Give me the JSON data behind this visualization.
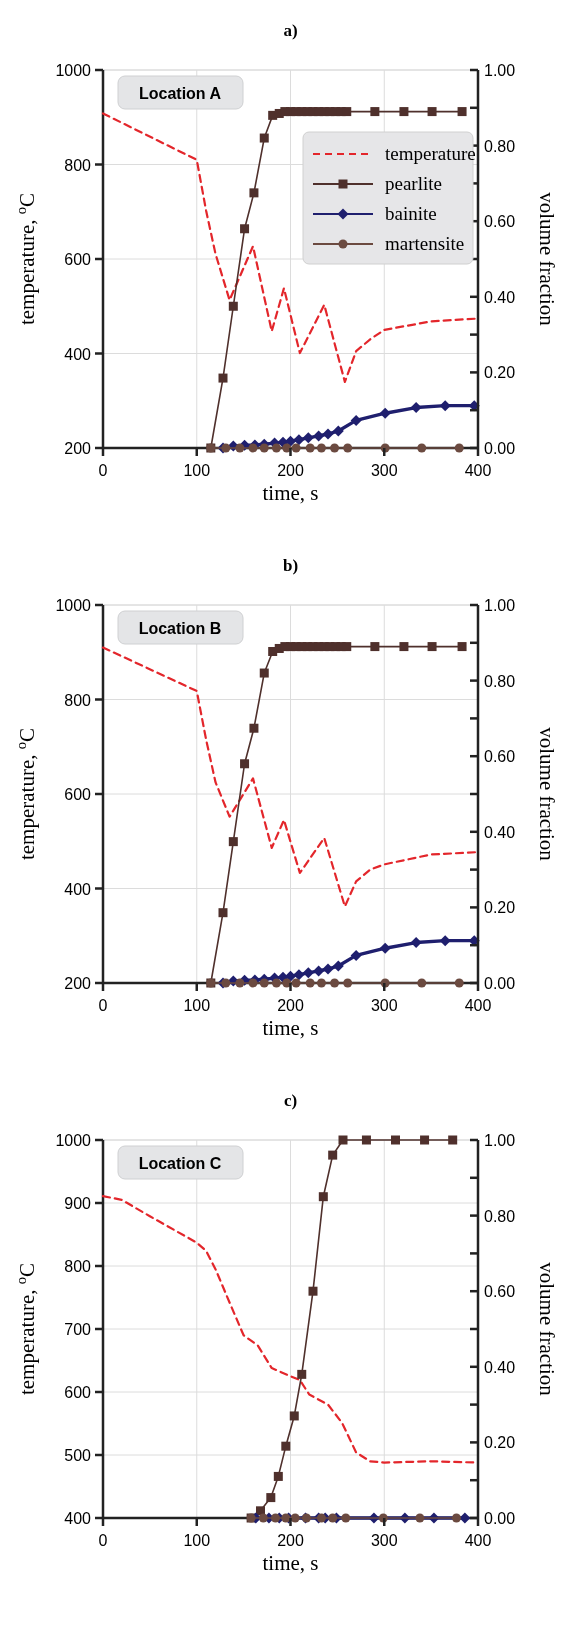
{
  "chart_data": [
    {
      "type": "line",
      "title": "a)",
      "xlabel": "time, s",
      "ylabel": "temperature, $^{o}$C",
      "y2label": "volume fraction",
      "annotations": [
        "Location A"
      ],
      "xlim": [
        0,
        400
      ],
      "xticks": [
        0,
        100,
        200,
        300,
        400
      ],
      "ylim": [
        200,
        1000
      ],
      "yticks": [
        200,
        400,
        600,
        800,
        1000
      ],
      "y2lim": [
        0,
        1
      ],
      "y2ticks": [
        {
          "value": 0,
          "label": "0.00"
        },
        {
          "value": 0.1,
          "label": null
        },
        {
          "value": 0.2,
          "label": "0.20"
        },
        {
          "value": 0.3,
          "label": null
        },
        {
          "value": 0.4,
          "label": "0.40"
        },
        {
          "value": 0.5,
          "label": null
        },
        {
          "value": 0.6,
          "label": "0.60"
        },
        {
          "value": 0.7,
          "label": null
        },
        {
          "value": 0.8,
          "label": "0.80"
        },
        {
          "value": 0.9,
          "label": null
        },
        {
          "value": 1,
          "label": "1.00"
        }
      ],
      "grid": true,
      "legend": "top right",
      "series": [
        {
          "name": "temperature",
          "color": "#e3262b",
          "line_style": "dashed",
          "marker": "none",
          "x": [
            0,
            100,
            110,
            120,
            135,
            160,
            180,
            193,
            210,
            236,
            258,
            270,
            285,
            300,
            350,
            400
          ],
          "values": [
            908,
            810,
            702,
            611,
            513,
            627,
            447,
            538,
            401,
            503,
            340,
            405,
            430,
            450,
            468,
            474
          ]
        },
        {
          "name": "pearlite",
          "color": "#4f302c",
          "axis": "y2",
          "marker": "square",
          "x": [
            115,
            128,
            139,
            151,
            161,
            172,
            181,
            188,
            194,
            200,
            206,
            212,
            218,
            224,
            230,
            236,
            242,
            248,
            254,
            260,
            290,
            321,
            351,
            383
          ],
          "values": [
            0,
            0.185,
            0.375,
            0.58,
            0.675,
            0.82,
            0.88,
            0.885,
            0.89,
            0.89,
            0.89,
            0.89,
            0.89,
            0.89,
            0.89,
            0.89,
            0.89,
            0.89,
            0.89,
            0.89,
            0.89,
            0.89,
            0.89,
            0.89
          ]
        },
        {
          "name": "bainite",
          "color": "#1f1f6e",
          "axis": "y2",
          "marker": "diamond",
          "x": [
            128,
            139,
            151,
            162,
            172,
            183,
            192,
            200,
            209,
            219,
            230,
            240,
            251,
            270,
            301,
            334,
            365,
            396
          ],
          "values": [
            0,
            0.005,
            0.007,
            0.008,
            0.01,
            0.013,
            0.015,
            0.018,
            0.022,
            0.027,
            0.032,
            0.037,
            0.045,
            0.073,
            0.092,
            0.107,
            0.112,
            0.112
          ]
        },
        {
          "name": "martensite",
          "color": "#6b4a40",
          "axis": "y2",
          "marker": "circle",
          "x": [
            115,
            131,
            146,
            160,
            172,
            185,
            196,
            206,
            221,
            233,
            247,
            261,
            301,
            340,
            380
          ],
          "values": [
            0,
            0,
            0,
            0,
            0,
            0,
            0,
            0,
            0,
            0,
            0,
            0,
            0,
            0,
            0
          ]
        }
      ]
    },
    {
      "type": "line",
      "title": "b)",
      "xlabel": "time, s",
      "ylabel": "temperature, $^{o}$C",
      "y2label": "volume fraction",
      "annotations": [
        "Location B"
      ],
      "xlim": [
        0,
        400
      ],
      "xticks": [
        0,
        100,
        200,
        300,
        400
      ],
      "ylim": [
        200,
        1000
      ],
      "yticks": [
        200,
        400,
        600,
        800,
        1000
      ],
      "y2lim": [
        0,
        1
      ],
      "y2ticks": [
        {
          "value": 0,
          "label": "0.00"
        },
        {
          "value": 0.1,
          "label": null
        },
        {
          "value": 0.2,
          "label": "0.20"
        },
        {
          "value": 0.3,
          "label": null
        },
        {
          "value": 0.4,
          "label": "0.40"
        },
        {
          "value": 0.5,
          "label": null
        },
        {
          "value": 0.6,
          "label": "0.60"
        },
        {
          "value": 0.7,
          "label": null
        },
        {
          "value": 0.8,
          "label": "0.80"
        },
        {
          "value": 0.9,
          "label": null
        },
        {
          "value": 1,
          "label": "1.00"
        }
      ],
      "grid": true,
      "series": [
        {
          "color": "#e3262b",
          "line_style": "dashed",
          "marker": "none",
          "x": [
            0,
            100,
            110,
            120,
            135,
            160,
            180,
            193,
            210,
            236,
            258,
            270,
            285,
            300,
            350,
            400
          ],
          "values": [
            910,
            818,
            715,
            625,
            552,
            633,
            486,
            545,
            433,
            507,
            362,
            415,
            440,
            451,
            472,
            477
          ]
        },
        {
          "color": "#4f302c",
          "axis": "y2",
          "marker": "square",
          "x": [
            115,
            128,
            139,
            151,
            161,
            172,
            181,
            188,
            194,
            200,
            206,
            212,
            218,
            224,
            230,
            236,
            242,
            248,
            254,
            260,
            290,
            321,
            351,
            383
          ],
          "values": [
            0,
            0.186,
            0.374,
            0.58,
            0.674,
            0.82,
            0.877,
            0.885,
            0.89,
            0.89,
            0.89,
            0.89,
            0.89,
            0.89,
            0.89,
            0.89,
            0.89,
            0.89,
            0.89,
            0.89,
            0.89,
            0.89,
            0.89,
            0.89
          ]
        },
        {
          "color": "#1f1f6e",
          "axis": "y2",
          "marker": "diamond",
          "x": [
            128,
            139,
            151,
            162,
            172,
            183,
            192,
            200,
            209,
            219,
            230,
            240,
            251,
            270,
            301,
            334,
            365,
            396
          ],
          "values": [
            0,
            0.005,
            0.007,
            0.008,
            0.01,
            0.013,
            0.015,
            0.018,
            0.022,
            0.027,
            0.032,
            0.037,
            0.045,
            0.073,
            0.092,
            0.107,
            0.112,
            0.112
          ]
        },
        {
          "color": "#6b4a40",
          "axis": "y2",
          "marker": "circle",
          "x": [
            115,
            131,
            146,
            160,
            172,
            185,
            196,
            206,
            221,
            233,
            247,
            261,
            301,
            340,
            380
          ],
          "values": [
            0,
            0,
            0,
            0,
            0,
            0,
            0,
            0,
            0,
            0,
            0,
            0,
            0,
            0,
            0
          ]
        }
      ]
    },
    {
      "type": "line",
      "title": "c)",
      "xlabel": "time, s",
      "ylabel": "temperature, $^{o}$C",
      "y2label": "volume fraction",
      "annotations": [
        "Location C"
      ],
      "xlim": [
        0,
        400
      ],
      "xticks": [
        0,
        100,
        200,
        300,
        400
      ],
      "ylim": [
        400,
        1000
      ],
      "yticks": [
        400,
        500,
        600,
        700,
        800,
        900,
        1000
      ],
      "y2lim": [
        0,
        1
      ],
      "y2ticks": [
        {
          "value": 0,
          "label": "0.00"
        },
        {
          "value": 0.1,
          "label": null
        },
        {
          "value": 0.2,
          "label": "0.20"
        },
        {
          "value": 0.3,
          "label": null
        },
        {
          "value": 0.4,
          "label": "0.40"
        },
        {
          "value": 0.5,
          "label": null
        },
        {
          "value": 0.6,
          "label": "0.60"
        },
        {
          "value": 0.7,
          "label": null
        },
        {
          "value": 0.8,
          "label": "0.80"
        },
        {
          "value": 0.9,
          "label": null
        },
        {
          "value": 1,
          "label": "1.00"
        }
      ],
      "grid": true,
      "series": [
        {
          "color": "#e3262b",
          "line_style": "dashed",
          "marker": "none",
          "x": [
            0,
            20,
            50,
            100,
            110,
            120,
            135,
            150,
            165,
            180,
            200,
            210,
            220,
            240,
            255,
            270,
            285,
            300,
            350,
            400
          ],
          "values": [
            911,
            905,
            879,
            837,
            824,
            795,
            742,
            690,
            674,
            638,
            625,
            619,
            596,
            580,
            551,
            504,
            490,
            488,
            490,
            488
          ]
        },
        {
          "color": "#4f302c",
          "axis": "y2",
          "marker": "square",
          "x": [
            158,
            168,
            179,
            187,
            195,
            204,
            212,
            224,
            235,
            245,
            256,
            281,
            312,
            343,
            373
          ],
          "values": [
            0,
            0.019,
            0.054,
            0.11,
            0.19,
            0.27,
            0.38,
            0.6,
            0.85,
            0.96,
            1,
            1,
            1,
            1,
            1
          ]
        },
        {
          "color": "#1f1f6e",
          "axis": "y2",
          "marker": "diamond",
          "x": [
            163,
            177,
            188,
            198,
            216,
            230,
            237,
            249,
            289,
            322,
            353,
            386
          ],
          "values": [
            0,
            0,
            0,
            0,
            0,
            0,
            0,
            0,
            0,
            0,
            0,
            0
          ]
        },
        {
          "color": "#6b4a40",
          "axis": "y2",
          "marker": "circle",
          "x": [
            158,
            171,
            184,
            195,
            205,
            217,
            233,
            245,
            259,
            299,
            338,
            377
          ],
          "values": [
            0,
            0,
            0,
            0,
            0,
            0,
            0,
            0,
            0,
            0,
            0,
            0
          ]
        }
      ]
    }
  ]
}
